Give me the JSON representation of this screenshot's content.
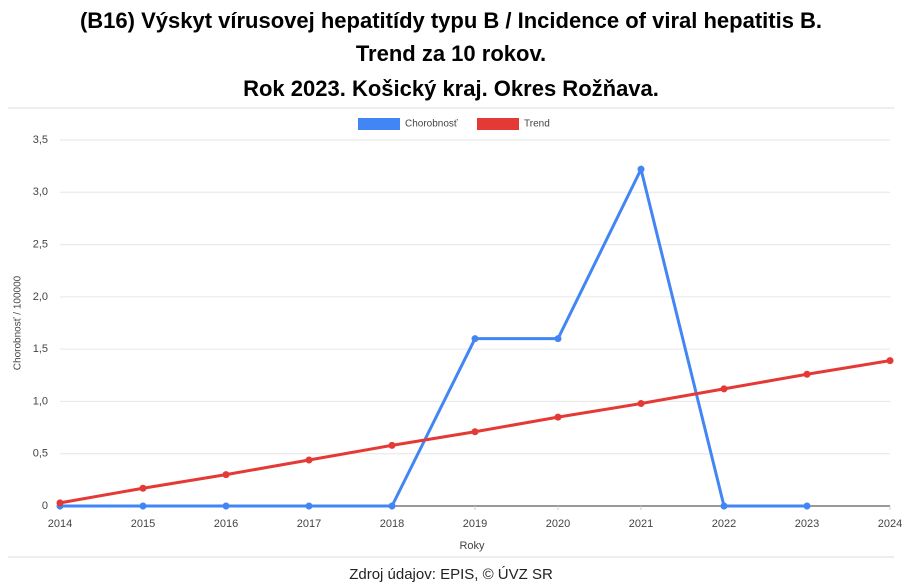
{
  "chart_data": {
    "type": "line",
    "title": [
      "(B16) Výskyt vírusovej hepatitídy typu B / Incidence of viral hepatitis B.",
      "Trend za 10 rokov.",
      "Rok 2023. Košický kraj. Okres Rožňava."
    ],
    "x": [
      2014,
      2015,
      2016,
      2017,
      2018,
      2019,
      2020,
      2021,
      2022,
      2023,
      2024
    ],
    "series": [
      {
        "name": "Chorobnosť",
        "color": "#4285f4",
        "values": [
          0,
          0,
          0,
          0,
          0,
          1.6,
          1.6,
          3.22,
          0,
          0,
          null
        ]
      },
      {
        "name": "Trend",
        "color": "#e53935",
        "values": [
          0.03,
          0.17,
          0.3,
          0.44,
          0.58,
          0.71,
          0.85,
          0.98,
          1.12,
          1.26,
          1.39
        ]
      }
    ],
    "xlim": [
      2014,
      2024
    ],
    "xticks": [
      2014,
      2015,
      2016,
      2017,
      2018,
      2019,
      2020,
      2021,
      2022,
      2023,
      2024
    ],
    "ylim": [
      0,
      3.5
    ],
    "yticks": [
      0,
      {
        "value": 0.5,
        "label": "0,5"
      },
      {
        "value": 1,
        "label": "1,0"
      },
      {
        "value": 1.5,
        "label": "1,5"
      },
      {
        "value": 2,
        "label": "2,0"
      },
      {
        "value": 2.5,
        "label": "2,5"
      },
      {
        "value": 3,
        "label": "3,0"
      },
      {
        "value": 3.5,
        "label": "3,5"
      }
    ],
    "xlabel": "Roky",
    "ylabel": "Chorobnosť / 100000",
    "source": "Zdroj údajov: EPIS, © ÚVZ SR",
    "grid": true,
    "legend": "top"
  }
}
